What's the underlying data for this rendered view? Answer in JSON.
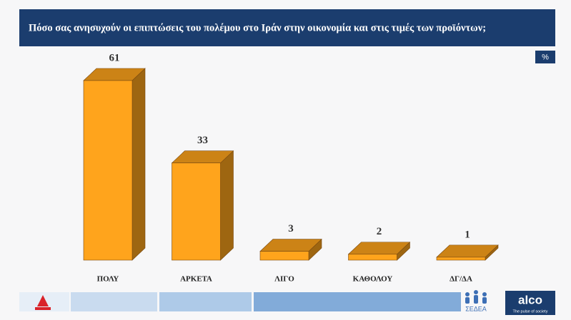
{
  "chart_data": {
    "type": "bar",
    "title": "Πόσο σας ανησυχούν οι επιπτώσεις του πολέμου στο Ιράν στην οικονομία και στις τιμές των προϊόντων;",
    "unit_label": "%",
    "categories": [
      "ΠΟΛΥ",
      "ΑΡΚΕΤΑ",
      "ΛΙΓΟ",
      "ΚΑΘΟΛΟΥ",
      "ΔΓ/ΔΑ"
    ],
    "values": [
      61,
      33,
      3,
      2,
      1
    ],
    "color": "#ffa41c"
  },
  "footer": {
    "sedea": "ΣΕΔΕΑ",
    "alco": "alco",
    "tagline": "The pulse of society"
  }
}
